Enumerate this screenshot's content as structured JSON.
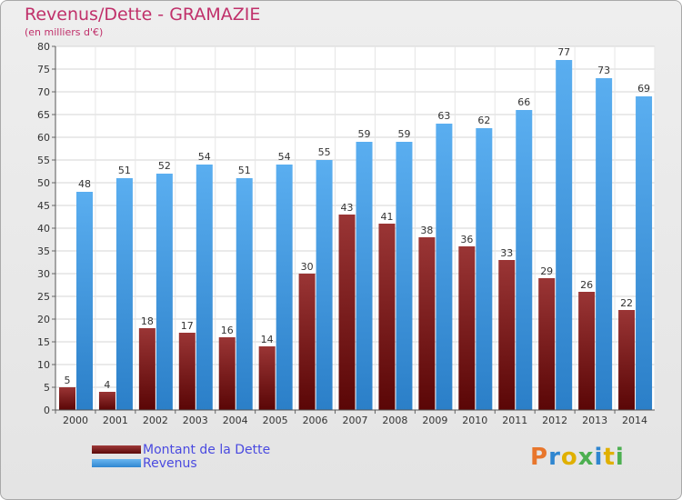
{
  "title": "Revenus/Dette - GRAMAZIE",
  "subtitle": "(en milliers d'€)",
  "legend": {
    "debt_label": "Montant de la Dette",
    "revenue_label": "Revenus"
  },
  "logo": {
    "text": "Proxiti",
    "colors": [
      "#e8762c",
      "#2f86d0",
      "#e0b000",
      "#4caf50",
      "#2f86d0",
      "#e0b000",
      "#4caf50"
    ]
  },
  "colors": {
    "title": "#c0306a",
    "debt": "#7a1a1a",
    "revenue": "#4aa3e8",
    "legend_text": "#4a4ae0"
  },
  "chart_data": {
    "type": "bar",
    "title": "Revenus/Dette - GRAMAZIE",
    "subtitle": "(en milliers d'€)",
    "categories": [
      "2000",
      "2001",
      "2002",
      "2003",
      "2004",
      "2005",
      "2006",
      "2007",
      "2008",
      "2009",
      "2010",
      "2011",
      "2012",
      "2013",
      "2014"
    ],
    "series": [
      {
        "name": "Montant de la Dette",
        "values": [
          5,
          4,
          18,
          17,
          16,
          14,
          30,
          43,
          41,
          38,
          36,
          33,
          29,
          26,
          22
        ]
      },
      {
        "name": "Revenus",
        "values": [
          48,
          51,
          52,
          54,
          51,
          54,
          55,
          59,
          59,
          63,
          62,
          66,
          77,
          73,
          69
        ]
      }
    ],
    "ylim": [
      0,
      80
    ],
    "yticks": [
      0,
      5,
      10,
      15,
      20,
      25,
      30,
      35,
      40,
      45,
      50,
      55,
      60,
      65,
      70,
      75,
      80
    ],
    "grid": true,
    "legend_position": "bottom-left"
  }
}
